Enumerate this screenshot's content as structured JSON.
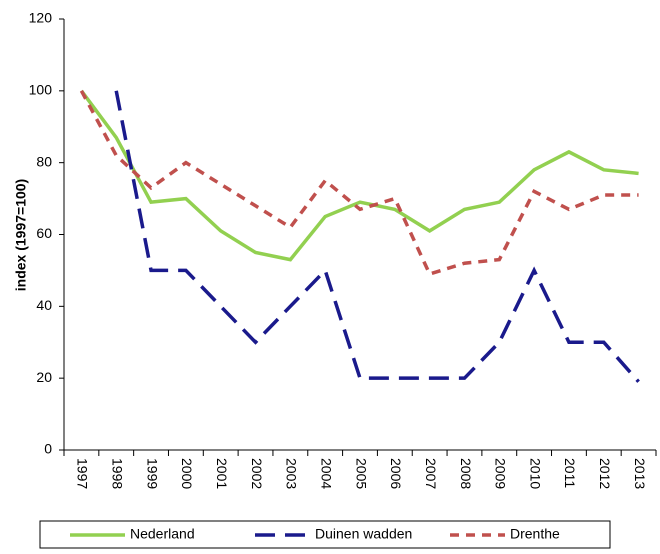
{
  "chart_data": {
    "type": "line",
    "y_label": "index (1997=100)",
    "categories": [
      "1997",
      "1998",
      "1999",
      "2000",
      "2001",
      "2002",
      "2003",
      "2004",
      "2005",
      "2006",
      "2007",
      "2008",
      "2009",
      "2010",
      "2011",
      "2012",
      "2013"
    ],
    "series": [
      {
        "name": "Nederland",
        "color": "#92d050",
        "dash": "solid",
        "values": [
          100,
          87,
          69,
          70,
          61,
          55,
          53,
          65,
          69,
          67,
          61,
          67,
          69,
          78,
          83,
          78,
          77
        ]
      },
      {
        "name": "Duinen wadden",
        "color": "#1a1a8c",
        "dash": "long",
        "values": [
          null,
          100,
          50,
          50,
          40,
          30,
          40,
          50,
          20,
          20,
          20,
          20,
          30,
          50,
          30,
          30,
          19
        ]
      },
      {
        "name": "Drenthe",
        "color": "#c0504d",
        "dash": "short",
        "values": [
          100,
          82,
          73,
          80,
          74,
          68,
          62,
          75,
          67,
          70,
          49,
          52,
          53,
          72,
          67,
          71,
          71
        ]
      }
    ],
    "ylim": [
      0,
      120
    ],
    "yticks": [
      0,
      20,
      40,
      60,
      80,
      100,
      120
    ],
    "grid": false,
    "legend": "bottom"
  }
}
